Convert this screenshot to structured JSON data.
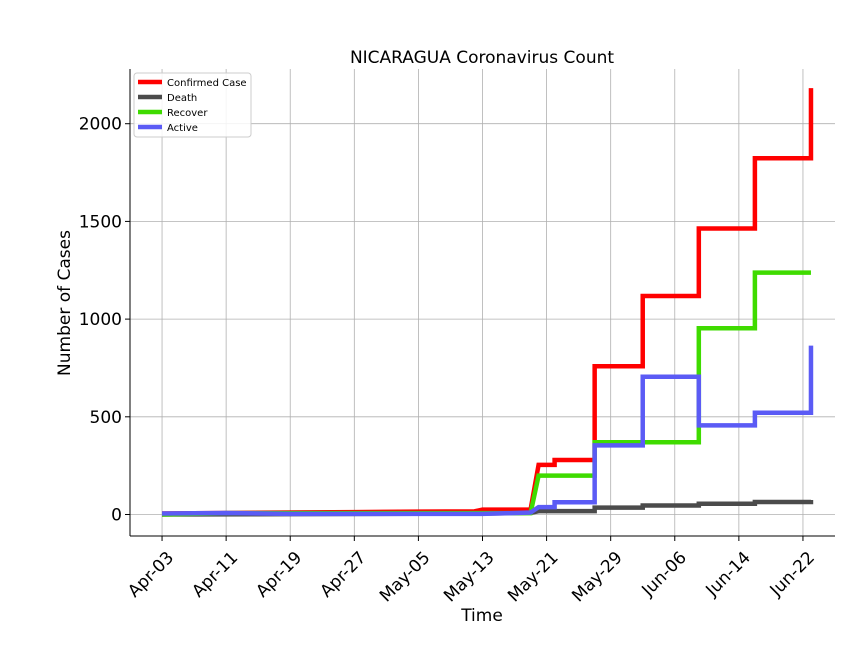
{
  "chart_data": {
    "type": "line",
    "title": "NICARAGUA Coronavirus Count",
    "xlabel": "Time",
    "ylabel": "Number of Cases",
    "x_type": "date",
    "xlim": [
      "2020-03-30",
      "2020-06-26"
    ],
    "ylim": [
      -110,
      2280
    ],
    "x_ticks": [
      "2020-04-03",
      "2020-04-11",
      "2020-04-19",
      "2020-04-27",
      "2020-05-05",
      "2020-05-13",
      "2020-05-21",
      "2020-05-29",
      "2020-06-06",
      "2020-06-14",
      "2020-06-22"
    ],
    "x_tick_labels": [
      "Apr-03",
      "Apr-11",
      "Apr-19",
      "Apr-27",
      "May-05",
      "May-13",
      "May-21",
      "May-29",
      "Jun-06",
      "Jun-14",
      "Jun-22"
    ],
    "y_ticks": [
      0,
      500,
      1000,
      1500,
      2000
    ],
    "y_tick_labels": [
      "0",
      "500",
      "1000",
      "1500",
      "2000"
    ],
    "grid": true,
    "legend_position": "top-left",
    "series": [
      {
        "name": "Confirmed Case",
        "color": "#ff0000",
        "points": [
          [
            "2020-04-03",
            5
          ],
          [
            "2020-04-11",
            8
          ],
          [
            "2020-04-19",
            10
          ],
          [
            "2020-04-27",
            12
          ],
          [
            "2020-05-05",
            15
          ],
          [
            "2020-05-12",
            16
          ],
          [
            "2020-05-13",
            25
          ],
          [
            "2020-05-19",
            25
          ],
          [
            "2020-05-20",
            254
          ],
          [
            "2020-05-22",
            254
          ],
          [
            "2020-05-22",
            279
          ],
          [
            "2020-05-27",
            279
          ],
          [
            "2020-05-27",
            759
          ],
          [
            "2020-06-02",
            759
          ],
          [
            "2020-06-02",
            1118
          ],
          [
            "2020-06-09",
            1118
          ],
          [
            "2020-06-09",
            1464
          ],
          [
            "2020-06-16",
            1464
          ],
          [
            "2020-06-16",
            1823
          ],
          [
            "2020-06-23",
            1823
          ],
          [
            "2020-06-23",
            2182
          ]
        ]
      },
      {
        "name": "Death",
        "color": "#4b4b4b",
        "points": [
          [
            "2020-04-03",
            0
          ],
          [
            "2020-05-13",
            5
          ],
          [
            "2020-05-19",
            8
          ],
          [
            "2020-05-20",
            17
          ],
          [
            "2020-05-27",
            17
          ],
          [
            "2020-05-27",
            35
          ],
          [
            "2020-06-02",
            35
          ],
          [
            "2020-06-02",
            46
          ],
          [
            "2020-06-09",
            46
          ],
          [
            "2020-06-09",
            55
          ],
          [
            "2020-06-16",
            55
          ],
          [
            "2020-06-16",
            64
          ],
          [
            "2020-06-23",
            64
          ],
          [
            "2020-06-23",
            74
          ]
        ]
      },
      {
        "name": "Recover",
        "color": "#3fdb00",
        "points": [
          [
            "2020-04-03",
            0
          ],
          [
            "2020-04-11",
            7
          ],
          [
            "2020-04-19",
            7
          ],
          [
            "2020-05-19",
            7
          ],
          [
            "2020-05-20",
            199
          ],
          [
            "2020-05-27",
            199
          ],
          [
            "2020-05-27",
            370
          ],
          [
            "2020-06-09",
            370
          ],
          [
            "2020-06-09",
            953
          ],
          [
            "2020-06-16",
            953
          ],
          [
            "2020-06-16",
            1238
          ],
          [
            "2020-06-23",
            1238
          ]
        ]
      },
      {
        "name": "Active",
        "color": "#5b5bf5",
        "points": [
          [
            "2020-04-03",
            5
          ],
          [
            "2020-04-11",
            8
          ],
          [
            "2020-04-19",
            3
          ],
          [
            "2020-05-13",
            3
          ],
          [
            "2020-05-19",
            10
          ],
          [
            "2020-05-20",
            38
          ],
          [
            "2020-05-22",
            38
          ],
          [
            "2020-05-22",
            63
          ],
          [
            "2020-05-27",
            63
          ],
          [
            "2020-05-27",
            354
          ],
          [
            "2020-06-02",
            354
          ],
          [
            "2020-06-02",
            705
          ],
          [
            "2020-06-09",
            705
          ],
          [
            "2020-06-09",
            456
          ],
          [
            "2020-06-16",
            456
          ],
          [
            "2020-06-16",
            521
          ],
          [
            "2020-06-23",
            521
          ],
          [
            "2020-06-23",
            864
          ]
        ]
      }
    ]
  }
}
